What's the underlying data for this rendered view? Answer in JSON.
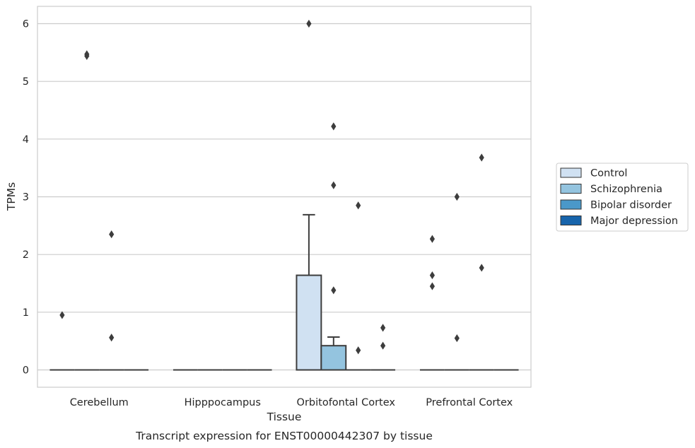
{
  "caption": "Transcript expression for ENST00000442307 by tissue",
  "chart_data": {
    "type": "box",
    "xlabel": "Tissue",
    "ylabel": "TPMs",
    "ylim": [
      -0.3,
      6.3
    ],
    "yticks": [
      0,
      1,
      2,
      3,
      4,
      5,
      6
    ],
    "grid": "horizontal",
    "legend_position": "outside-right",
    "categories": [
      "Cerebellum",
      "Hipppocampus",
      "Orbitofontal Cortex",
      "Prefrontal Cortex"
    ],
    "series": [
      {
        "name": "Control",
        "color": "#d0e1f2",
        "boxes": [
          {
            "q1": 0,
            "median": 0,
            "q3": 0,
            "whisker_low": 0,
            "whisker_high": 0,
            "outliers": [
              0.95
            ]
          },
          {
            "q1": 0,
            "median": 0,
            "q3": 0,
            "whisker_low": 0,
            "whisker_high": 0,
            "outliers": []
          },
          {
            "q1": 0,
            "median": 0,
            "q3": 1.64,
            "whisker_low": 0,
            "whisker_high": 2.69,
            "outliers": [
              6.0
            ]
          },
          {
            "q1": 0,
            "median": 0,
            "q3": 0,
            "whisker_low": 0,
            "whisker_high": 0,
            "outliers": [
              2.27,
              1.64,
              1.45
            ]
          }
        ]
      },
      {
        "name": "Schizophrenia",
        "color": "#94c4df",
        "boxes": [
          {
            "q1": 0,
            "median": 0,
            "q3": 0,
            "whisker_low": 0,
            "whisker_high": 0,
            "outliers": [
              5.47,
              5.44
            ]
          },
          {
            "q1": 0,
            "median": 0,
            "q3": 0,
            "whisker_low": 0,
            "whisker_high": 0,
            "outliers": []
          },
          {
            "q1": 0,
            "median": 0,
            "q3": 0.42,
            "whisker_low": 0,
            "whisker_high": 0.57,
            "outliers": [
              4.22,
              3.2,
              1.38
            ]
          },
          {
            "q1": 0,
            "median": 0,
            "q3": 0,
            "whisker_low": 0,
            "whisker_high": 0,
            "outliers": [
              3.0,
              0.55
            ]
          }
        ]
      },
      {
        "name": "Bipolar disorder",
        "color": "#4a98c9",
        "boxes": [
          {
            "q1": 0,
            "median": 0,
            "q3": 0,
            "whisker_low": 0,
            "whisker_high": 0,
            "outliers": [
              2.35,
              0.56
            ]
          },
          {
            "q1": 0,
            "median": 0,
            "q3": 0,
            "whisker_low": 0,
            "whisker_high": 0,
            "outliers": []
          },
          {
            "q1": 0,
            "median": 0,
            "q3": 0,
            "whisker_low": 0,
            "whisker_high": 0,
            "outliers": [
              2.85,
              0.34
            ]
          },
          {
            "q1": 0,
            "median": 0,
            "q3": 0,
            "whisker_low": 0,
            "whisker_high": 0,
            "outliers": [
              3.68,
              1.77
            ]
          }
        ]
      },
      {
        "name": "Major depression",
        "color": "#1764ab",
        "boxes": [
          {
            "q1": 0,
            "median": 0,
            "q3": 0,
            "whisker_low": 0,
            "whisker_high": 0,
            "outliers": []
          },
          {
            "q1": 0,
            "median": 0,
            "q3": 0,
            "whisker_low": 0,
            "whisker_high": 0,
            "outliers": []
          },
          {
            "q1": 0,
            "median": 0,
            "q3": 0,
            "whisker_low": 0,
            "whisker_high": 0,
            "outliers": [
              0.73,
              0.42
            ]
          },
          {
            "q1": 0,
            "median": 0,
            "q3": 0,
            "whisker_low": 0,
            "whisker_high": 0,
            "outliers": []
          }
        ]
      }
    ]
  }
}
